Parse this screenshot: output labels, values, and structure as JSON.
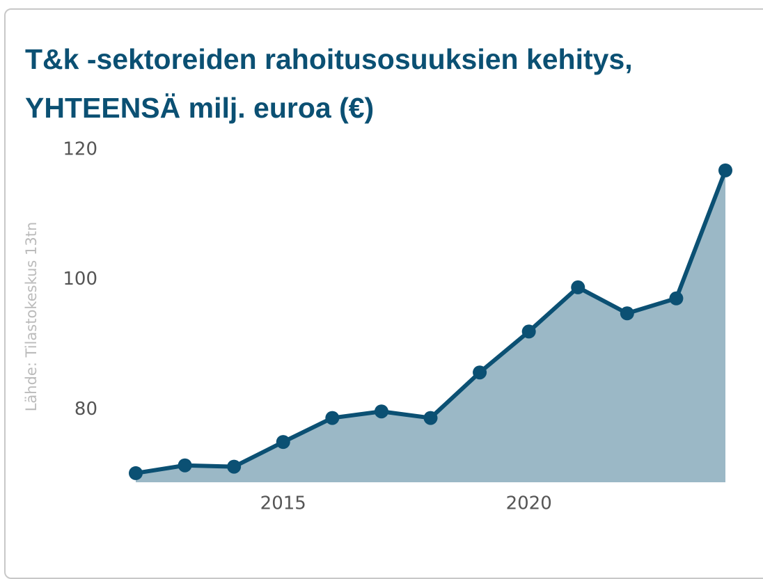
{
  "chart_data": {
    "type": "area",
    "title": "T&k -sektoreiden rahoitusosuuksien kehitys, YHTEENSÄ milj. euroa (€)",
    "y_label": "Lähde: Tilastokeskus 13tn",
    "x": [
      2012,
      2013,
      2014,
      2015,
      2016,
      2017,
      2018,
      2019,
      2020,
      2021,
      2022,
      2023,
      2024
    ],
    "series": [
      {
        "name": "YHTEENSÄ",
        "color": "#0b5073",
        "fill": "#9bb8c6",
        "values": [
          70.2,
          71.4,
          71.2,
          75.0,
          78.7,
          79.7,
          78.7,
          85.7,
          92.0,
          98.8,
          94.8,
          97.1,
          116.8
        ]
      }
    ],
    "xlim": [
      2012,
      2024
    ],
    "xticks": [
      2015,
      2020
    ],
    "ylim": [
      68.8,
      120
    ],
    "yticks": [
      80,
      100,
      120
    ],
    "grid": false
  }
}
